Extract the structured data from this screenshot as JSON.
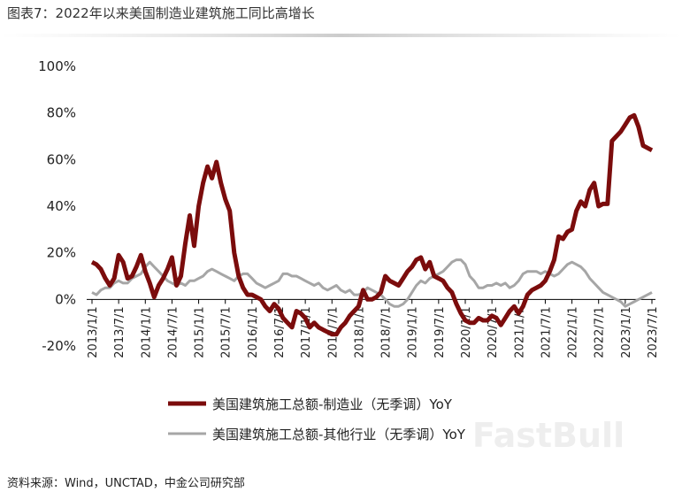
{
  "chart_data": {
    "type": "line",
    "title": "图表7：2022年以来美国制造业建筑施工同比高增长",
    "source": "资料来源：Wind，UNCTAD，中金公司研究部",
    "watermark": "FastBull",
    "categories": [
      "2013/1/1",
      null,
      null,
      null,
      null,
      null,
      "2013/7/1",
      null,
      null,
      null,
      null,
      null,
      "2014/1/1",
      null,
      null,
      null,
      null,
      null,
      "2014/7/1",
      null,
      null,
      null,
      null,
      null,
      "2015/1/1",
      null,
      null,
      null,
      null,
      null,
      "2015/7/1",
      null,
      null,
      null,
      null,
      null,
      "2016/1/1",
      null,
      null,
      null,
      null,
      null,
      "2016/7/1",
      null,
      null,
      null,
      null,
      null,
      "2017/1/1",
      null,
      null,
      null,
      null,
      null,
      "2017/7/1",
      null,
      null,
      null,
      null,
      null,
      "2018/1/1",
      null,
      null,
      null,
      null,
      null,
      "2018/7/1",
      null,
      null,
      null,
      null,
      null,
      "2019/1/1",
      null,
      null,
      null,
      null,
      null,
      "2019/7/1",
      null,
      null,
      null,
      null,
      null,
      "2020/1/1",
      null,
      null,
      null,
      null,
      null,
      "2020/7/1",
      null,
      null,
      null,
      null,
      null,
      "2021/1/1",
      null,
      null,
      null,
      null,
      null,
      "2021/7/1",
      null,
      null,
      null,
      null,
      null,
      "2022/1/1",
      null,
      null,
      null,
      null,
      null,
      "2022/7/1",
      null,
      null,
      null,
      null,
      null,
      "2023/1/1",
      null,
      null,
      null,
      null,
      null,
      "2023/7/1"
    ],
    "series": [
      {
        "name": "美国建筑施工总额-制造业（无季调）YoY",
        "color": "#7b0c0c",
        "width": 5,
        "values": [
          16,
          15,
          13,
          9,
          6,
          9,
          19,
          16,
          9,
          10,
          14,
          19,
          12,
          7,
          1,
          6,
          9,
          13,
          18,
          6,
          10,
          24,
          36,
          23,
          40,
          50,
          57,
          52,
          59,
          50,
          43,
          38,
          20,
          10,
          5,
          2,
          2,
          1,
          0,
          -3,
          -5,
          -2,
          -4,
          -8,
          -10,
          -12,
          -5,
          -6,
          -8,
          -12,
          -10,
          -12,
          -13,
          -14,
          -15,
          -15,
          -12,
          -10,
          -7,
          -5,
          -3,
          4,
          0,
          0,
          1,
          3,
          10,
          8,
          7,
          6,
          9,
          12,
          14,
          17,
          18,
          13,
          16,
          10,
          9,
          8,
          5,
          3,
          -2,
          -6,
          -9,
          -10,
          -10,
          -8,
          -9,
          -9,
          -7,
          -8,
          -11,
          -8,
          -5,
          -3,
          -6,
          -3,
          2,
          4,
          5,
          6,
          8,
          12,
          17,
          27,
          26,
          29,
          30,
          38,
          42,
          40,
          47,
          50,
          40,
          41,
          41,
          68,
          70,
          72,
          75,
          78,
          79,
          74,
          66,
          65,
          64
        ]
      },
      {
        "name": "美国建筑施工总额-其他行业（无季调）YoY",
        "color": "#a6a6a6",
        "width": 3,
        "values": [
          3,
          2,
          4,
          5,
          5,
          7,
          8,
          7,
          7,
          9,
          10,
          11,
          14,
          16,
          14,
          12,
          10,
          8,
          7,
          6,
          7,
          6,
          8,
          8,
          9,
          10,
          12,
          13,
          12,
          11,
          10,
          9,
          8,
          10,
          11,
          11,
          9,
          7,
          6,
          5,
          6,
          7,
          8,
          11,
          11,
          10,
          10,
          9,
          8,
          7,
          6,
          7,
          5,
          4,
          5,
          6,
          4,
          3,
          4,
          2,
          2,
          3,
          5,
          4,
          3,
          2,
          0,
          -2,
          -3,
          -3,
          -2,
          0,
          3,
          6,
          8,
          7,
          9,
          10,
          11,
          12,
          14,
          16,
          17,
          17,
          15,
          10,
          8,
          5,
          5,
          6,
          6,
          7,
          6,
          7,
          5,
          6,
          8,
          11,
          12,
          12,
          12,
          11,
          12,
          11,
          10,
          11,
          13,
          15,
          16,
          15,
          14,
          12,
          9,
          7,
          5,
          3,
          2,
          1,
          0,
          -1,
          -3,
          -2,
          -1,
          0,
          1,
          2,
          3
        ]
      }
    ],
    "ylim": [
      -20,
      100
    ],
    "yticks": [
      {
        "value": -20,
        "label": "-20%"
      },
      {
        "value": 0,
        "label": "0%"
      },
      {
        "value": 20,
        "label": "20%"
      },
      {
        "value": 40,
        "label": "40%"
      },
      {
        "value": 60,
        "label": "60%"
      },
      {
        "value": 80,
        "label": "80%"
      },
      {
        "value": 100,
        "label": "100%"
      }
    ],
    "grid": false
  }
}
